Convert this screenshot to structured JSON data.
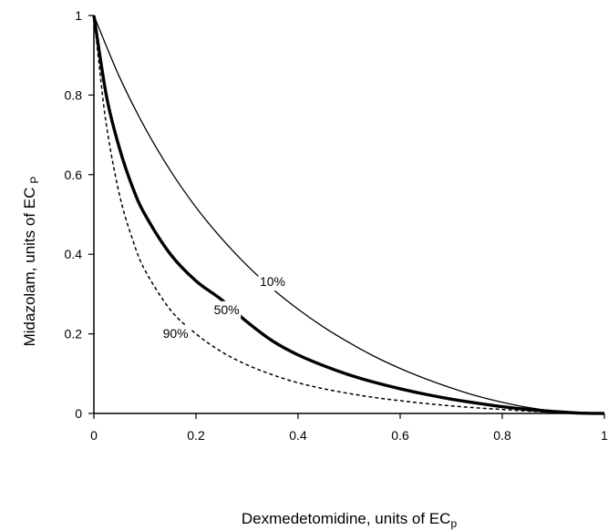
{
  "chart_data": {
    "type": "line",
    "title": "",
    "xlabel": "Dexmedetomidine, units of EC",
    "xlabel_subscript": "p",
    "ylabel": "Midazolam, units of EC",
    "ylabel_subscript": "P",
    "xlim": [
      0,
      1
    ],
    "ylim": [
      0,
      1
    ],
    "xticks": [
      0,
      0.2,
      0.4,
      0.6,
      0.8,
      1
    ],
    "xtick_labels": [
      "0",
      "0.2",
      "0.4",
      "0.6",
      "0.8",
      "1"
    ],
    "yticks": [
      0,
      0.2,
      0.4,
      0.6,
      0.8,
      1
    ],
    "ytick_labels": [
      "0",
      "0.2",
      "0.4",
      "0.6",
      "0.8",
      "1"
    ],
    "grid": false,
    "series": [
      {
        "label": "10%",
        "style": "thin-solid",
        "color": "#000000",
        "x": [
          0,
          0.05,
          0.1,
          0.15,
          0.2,
          0.25,
          0.3,
          0.35,
          0.4,
          0.45,
          0.5,
          0.55,
          0.6,
          0.65,
          0.7,
          0.75,
          0.8,
          0.85,
          0.9,
          0.95,
          1
        ],
        "y": [
          1,
          0.846,
          0.718,
          0.61,
          0.518,
          0.44,
          0.372,
          0.313,
          0.262,
          0.217,
          0.178,
          0.143,
          0.113,
          0.087,
          0.064,
          0.044,
          0.028,
          0.015,
          0.006,
          0.001,
          0
        ]
      },
      {
        "label": "50%",
        "style": "thick-solid",
        "color": "#000000",
        "x": [
          0,
          0.025,
          0.05,
          0.075,
          0.1,
          0.15,
          0.2,
          0.25,
          0.3,
          0.35,
          0.4,
          0.45,
          0.5,
          0.55,
          0.6,
          0.65,
          0.7,
          0.75,
          0.8,
          0.85,
          0.9,
          0.95,
          1
        ],
        "y": [
          1,
          0.795,
          0.667,
          0.571,
          0.5,
          0.4,
          0.333,
          0.286,
          0.23,
          0.182,
          0.147,
          0.12,
          0.097,
          0.078,
          0.062,
          0.048,
          0.036,
          0.026,
          0.017,
          0.01,
          0.005,
          0.001,
          0
        ]
      },
      {
        "label": "90%",
        "style": "dashed",
        "color": "#000000",
        "x": [
          0,
          0.01,
          0.025,
          0.05,
          0.075,
          0.1,
          0.15,
          0.2,
          0.25,
          0.3,
          0.35,
          0.4,
          0.45,
          0.5,
          0.55,
          0.6,
          0.65,
          0.7,
          0.75,
          0.8,
          0.85,
          0.9,
          0.95,
          1
        ],
        "y": [
          1,
          0.88,
          0.72,
          0.55,
          0.44,
          0.36,
          0.26,
          0.2,
          0.155,
          0.122,
          0.097,
          0.077,
          0.062,
          0.05,
          0.04,
          0.032,
          0.025,
          0.019,
          0.014,
          0.01,
          0.006,
          0.003,
          0.001,
          0
        ]
      }
    ],
    "annotations": [
      {
        "text": "10%",
        "x": 0.35,
        "y": 0.32
      },
      {
        "text": "50%",
        "x": 0.26,
        "y": 0.25
      },
      {
        "text": "90%",
        "x": 0.16,
        "y": 0.19
      }
    ]
  }
}
